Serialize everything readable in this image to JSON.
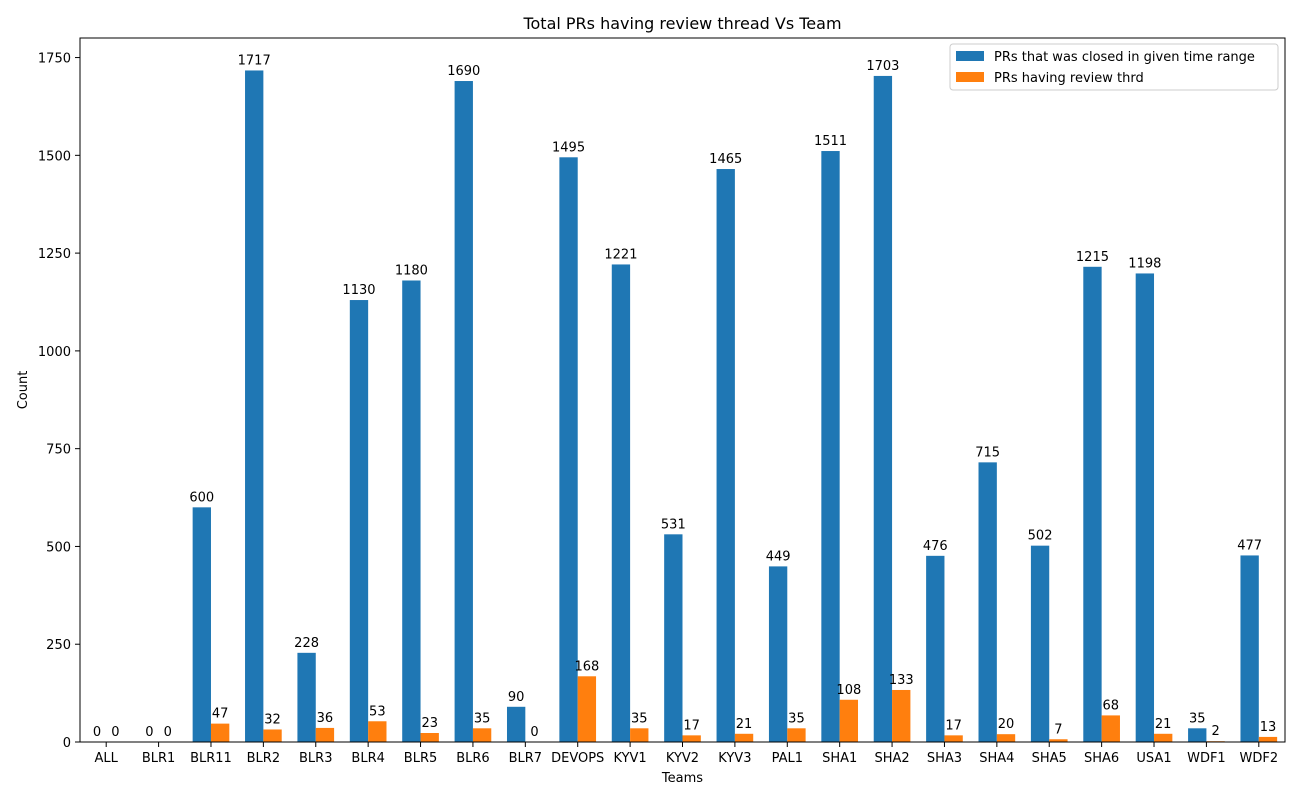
{
  "chart_data": {
    "type": "bar",
    "title": "Total PRs having review thread  Vs Team",
    "xlabel": "Teams",
    "ylabel": "Count",
    "ylim": [
      0,
      1800
    ],
    "yticks": [
      0,
      250,
      500,
      750,
      1000,
      1250,
      1500,
      1750
    ],
    "grid": false,
    "legend_position": "top-right",
    "categories": [
      "ALL",
      "BLR1",
      "BLR11",
      "BLR2",
      "BLR3",
      "BLR4",
      "BLR5",
      "BLR6",
      "BLR7",
      "DEVOPS",
      "KYV1",
      "KYV2",
      "KYV3",
      "PAL1",
      "SHA1",
      "SHA2",
      "SHA3",
      "SHA4",
      "SHA5",
      "SHA6",
      "USA1",
      "WDF1",
      "WDF2"
    ],
    "series": [
      {
        "name": "PRs that was closed in given time range",
        "color": "#1f77b4",
        "values": [
          0,
          0,
          600,
          1717,
          228,
          1130,
          1180,
          1690,
          90,
          1495,
          1221,
          531,
          1465,
          449,
          1511,
          1703,
          476,
          715,
          502,
          1215,
          1198,
          35,
          477
        ],
        "labels": [
          "0",
          "0",
          "600",
          "1717",
          "228",
          "1130",
          "1180",
          "1690",
          "90",
          "1495",
          "1221",
          "531",
          "1465",
          "449",
          "1511",
          "1703",
          "476",
          "715",
          "502",
          "1215",
          "1198",
          "35",
          "477"
        ]
      },
      {
        "name": "PRs having review thrd",
        "color": "#ff7f0e",
        "values": [
          0,
          0,
          47,
          32,
          36,
          53,
          23,
          35,
          0,
          168,
          35,
          17,
          21,
          35,
          108,
          133,
          17,
          20,
          7,
          68,
          21,
          2,
          13
        ],
        "labels": [
          "0",
          "0",
          "47",
          "32",
          "36",
          "53",
          "23",
          "35",
          "0",
          "168",
          "35",
          "17",
          "21",
          "35",
          "108",
          "133",
          "17",
          "20",
          "7",
          "68",
          "21",
          "2",
          "13"
        ]
      }
    ]
  }
}
